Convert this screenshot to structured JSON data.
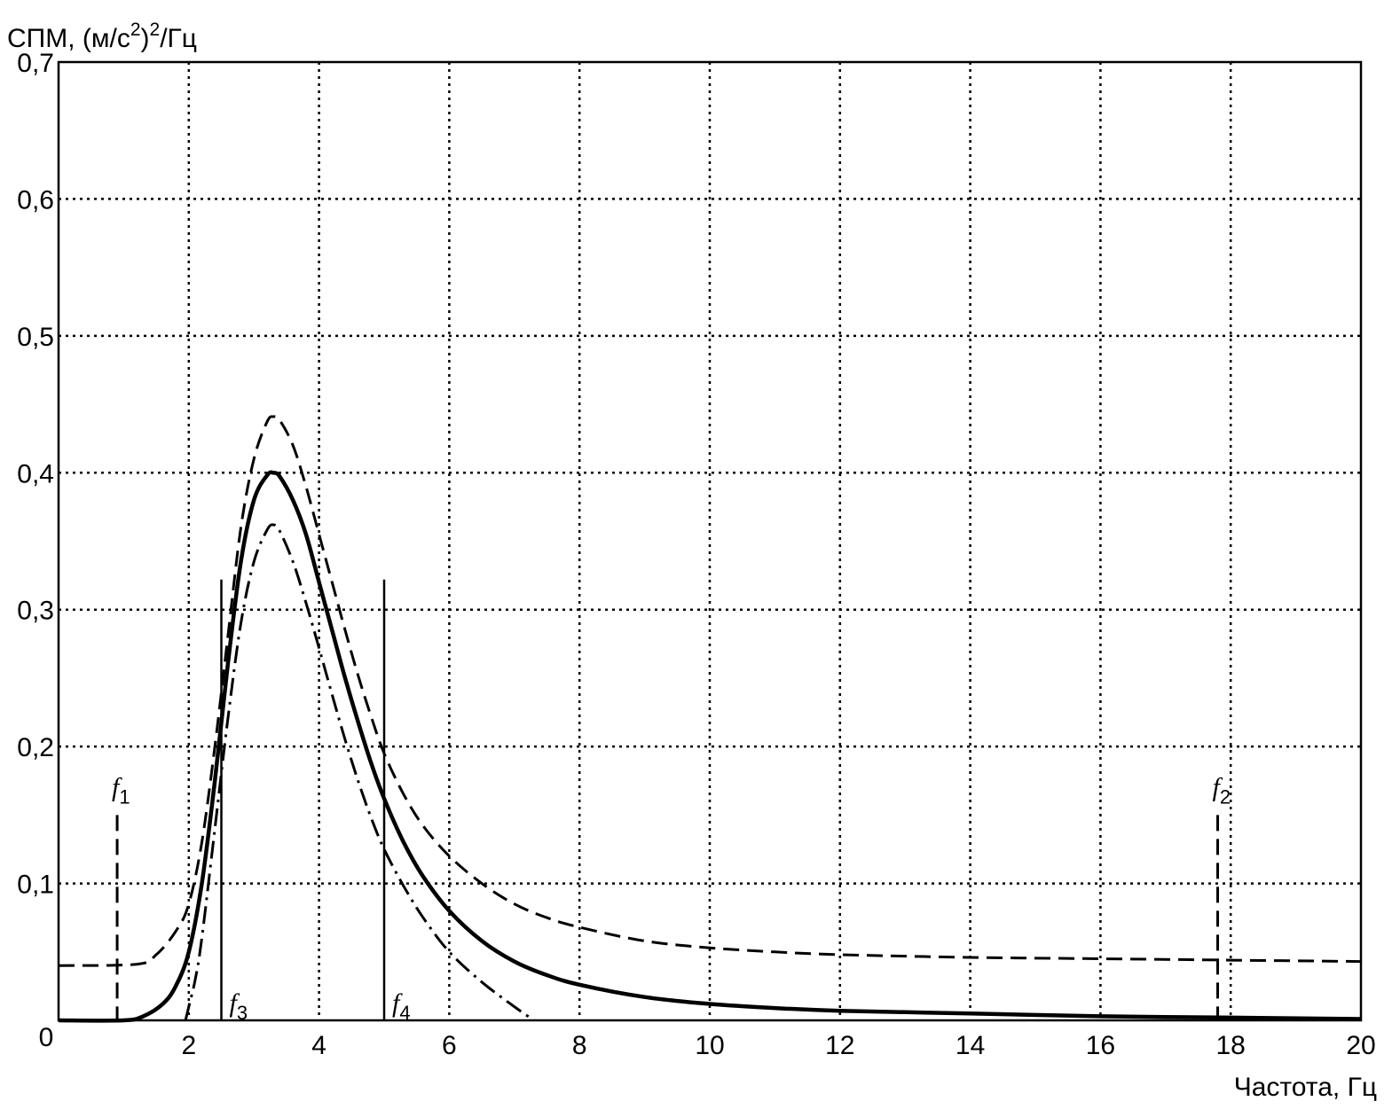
{
  "chart_data": {
    "type": "line",
    "ylabel_main": "СПМ, (м/с",
    "ylabel_sup1": "2",
    "ylabel_paren": ")",
    "ylabel_sup2": "2",
    "ylabel_tail": "/Гц",
    "xlabel": "Частота, Гц",
    "xlim": [
      0,
      20
    ],
    "ylim": [
      0,
      0.7
    ],
    "grid": true,
    "origin_label": "0",
    "x_ticks": [
      2,
      4,
      6,
      8,
      10,
      12,
      14,
      16,
      18,
      20
    ],
    "x_tick_labels": [
      "2",
      "4",
      "6",
      "8",
      "10",
      "12",
      "14",
      "16",
      "18",
      "20"
    ],
    "y_ticks": [
      0.1,
      0.2,
      0.3,
      0.4,
      0.5,
      0.6,
      0.7
    ],
    "y_tick_labels": [
      "0,1",
      "0,2",
      "0,3",
      "0,4",
      "0,5",
      "0,6",
      "0,7"
    ],
    "series": [
      {
        "style": "solid",
        "x": [
          0,
          1.0,
          1.3,
          1.6,
          1.8,
          2.0,
          2.2,
          2.4,
          2.6,
          2.8,
          3.0,
          3.2,
          3.3,
          3.4,
          3.6,
          3.8,
          4.0,
          4.2,
          4.4,
          4.6,
          4.8,
          5.0,
          5.3,
          5.6,
          6.0,
          6.5,
          7.0,
          7.5,
          8.0,
          9.0,
          10.0,
          11.0,
          12.0,
          14.0,
          16.0,
          18.0,
          20.0
        ],
        "y": [
          0.0,
          0.0,
          0.003,
          0.012,
          0.025,
          0.05,
          0.1,
          0.175,
          0.26,
          0.335,
          0.38,
          0.398,
          0.4,
          0.397,
          0.38,
          0.355,
          0.32,
          0.285,
          0.25,
          0.218,
          0.188,
          0.162,
          0.13,
          0.105,
          0.08,
          0.058,
          0.043,
          0.033,
          0.026,
          0.017,
          0.012,
          0.009,
          0.007,
          0.005,
          0.003,
          0.002,
          0.001
        ]
      },
      {
        "style": "dashed",
        "x": [
          0,
          1.2,
          1.5,
          1.8,
          2.0,
          2.2,
          2.4,
          2.6,
          2.8,
          3.0,
          3.2,
          3.3,
          3.4,
          3.6,
          3.8,
          4.0,
          4.2,
          4.4,
          4.6,
          4.8,
          5.0,
          5.3,
          5.6,
          6.0,
          6.5,
          7.0,
          7.5,
          8.0,
          9.0,
          10.0,
          11.0,
          12.0,
          14.0,
          16.0,
          18.0,
          20.0
        ],
        "y": [
          0.04,
          0.041,
          0.048,
          0.065,
          0.085,
          0.13,
          0.2,
          0.28,
          0.36,
          0.41,
          0.437,
          0.441,
          0.438,
          0.42,
          0.39,
          0.355,
          0.32,
          0.285,
          0.252,
          0.222,
          0.195,
          0.165,
          0.142,
          0.12,
          0.1,
          0.085,
          0.075,
          0.068,
          0.058,
          0.053,
          0.05,
          0.048,
          0.046,
          0.045,
          0.044,
          0.043
        ]
      },
      {
        "style": "dash-dot",
        "x": [
          1.95,
          2.0,
          2.1,
          2.2,
          2.4,
          2.6,
          2.8,
          3.0,
          3.2,
          3.3,
          3.4,
          3.6,
          3.8,
          4.0,
          4.2,
          4.4,
          4.6,
          4.8,
          5.0,
          5.3,
          5.6,
          6.0,
          6.5,
          7.0,
          7.3
        ],
        "y": [
          0.0,
          0.01,
          0.03,
          0.06,
          0.14,
          0.22,
          0.29,
          0.335,
          0.358,
          0.362,
          0.357,
          0.335,
          0.305,
          0.272,
          0.238,
          0.205,
          0.175,
          0.148,
          0.125,
          0.098,
          0.075,
          0.05,
          0.028,
          0.01,
          0.0
        ]
      }
    ],
    "markers": [
      {
        "label": "f",
        "sub": "1",
        "x": 0.9,
        "y_top": 0.15,
        "style": "dashed",
        "label_side": "top"
      },
      {
        "label": "f",
        "sub": "2",
        "x": 17.8,
        "y_top": 0.15,
        "style": "dashed",
        "label_side": "top"
      },
      {
        "label": "f",
        "sub": "3",
        "x": 2.5,
        "y_top": 0.322,
        "style": "solid",
        "label_side": "bottom"
      },
      {
        "label": "f",
        "sub": "4",
        "x": 5.0,
        "y_top": 0.322,
        "style": "solid",
        "label_side": "bottom"
      }
    ]
  }
}
